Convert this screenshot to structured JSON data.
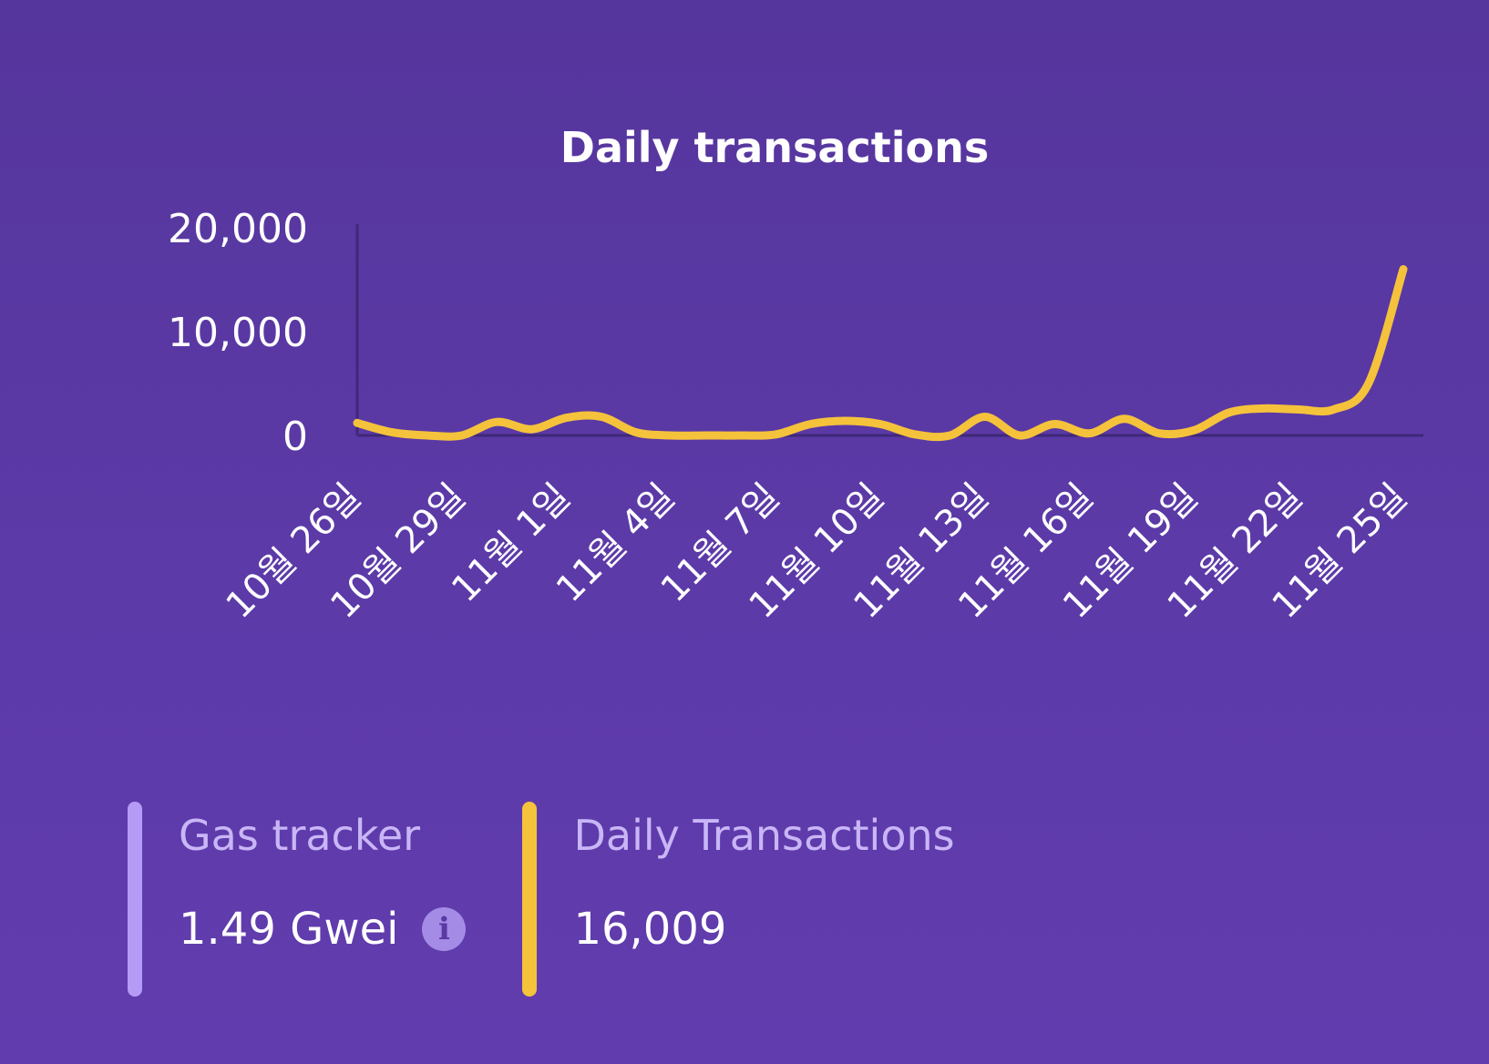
{
  "chart_data": {
    "type": "line",
    "title": "Daily transactions",
    "xlabel": "",
    "ylabel": "",
    "ylim": [
      0,
      20000
    ],
    "yticks": [
      "20,000",
      "10,000",
      "0"
    ],
    "ytick_values": [
      20000,
      10000,
      0
    ],
    "x_tick_labels": [
      "10월 26일",
      "10월 29일",
      "11월 1일",
      "11월 4일",
      "11월 7일",
      "11월 10일",
      "11월 13일",
      "11월 16일",
      "11월 19일",
      "11월 22일",
      "11월 25일"
    ],
    "x_tick_index": [
      0,
      3,
      6,
      9,
      12,
      15,
      18,
      21,
      24,
      27,
      30
    ],
    "grid": false,
    "series": [
      {
        "name": "Daily Transactions",
        "color": "#f5c23b",
        "values": [
          1200,
          300,
          0,
          0,
          1300,
          600,
          1700,
          1800,
          300,
          0,
          0,
          0,
          100,
          1100,
          1400,
          1100,
          100,
          0,
          1800,
          0,
          1100,
          200,
          1600,
          200,
          500,
          2200,
          2600,
          2500,
          2500,
          5000,
          16009
        ]
      }
    ]
  },
  "stats": {
    "gas": {
      "label": "Gas tracker",
      "value": "1.49 Gwei",
      "icon": "info-icon",
      "icon_glyph": "i",
      "color": "#b59bf6"
    },
    "daily": {
      "label": "Daily Transactions",
      "value": "16,009",
      "color": "#f5c23b"
    }
  }
}
